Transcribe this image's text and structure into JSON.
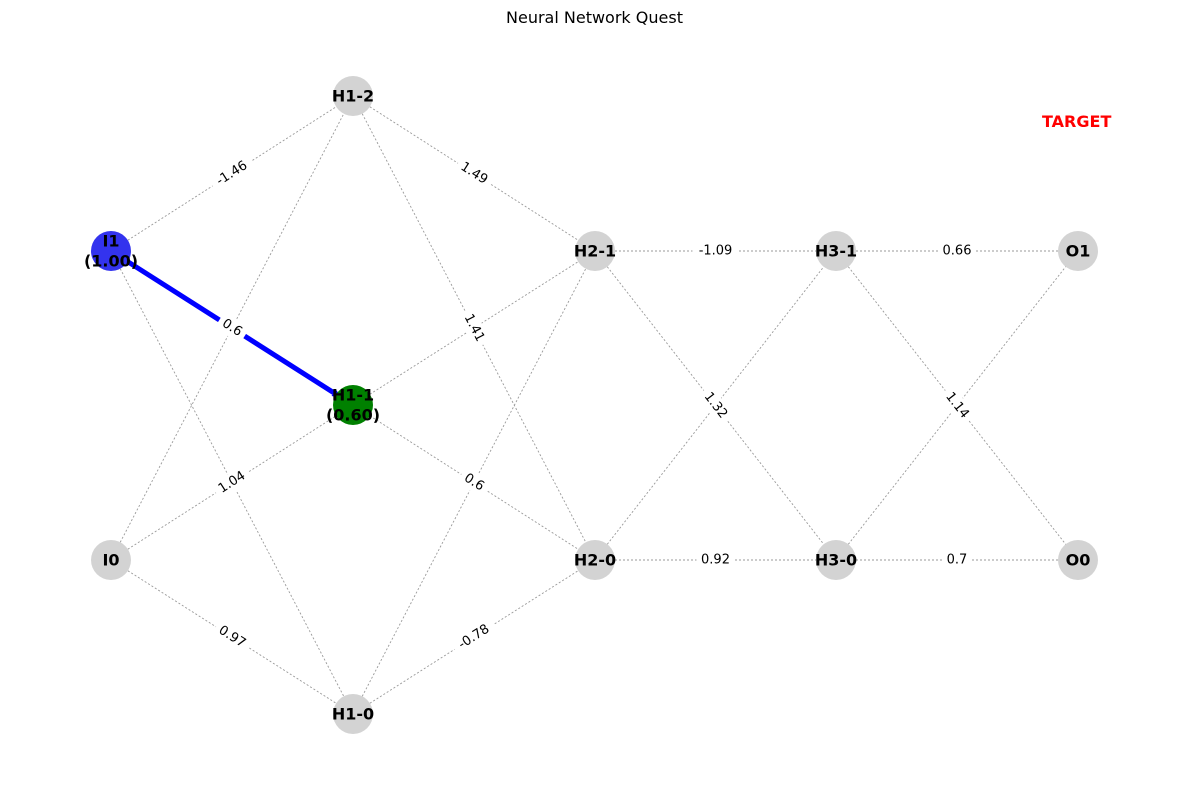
{
  "title": "Neural Network Quest",
  "target_label": "TARGET",
  "colors": {
    "node_default": "#d3d3d3",
    "node_current": "#3333ee",
    "node_next": "#008000",
    "edge": "#999999",
    "path": "#0000ff",
    "target_text": "#ff0000"
  },
  "nodes": [
    {
      "id": "I1",
      "label": "I1",
      "value": "(1.00)",
      "state": "current"
    },
    {
      "id": "I0",
      "label": "I0",
      "state": "default"
    },
    {
      "id": "H1-2",
      "label": "H1-2",
      "state": "default"
    },
    {
      "id": "H1-1",
      "label": "H1-1",
      "value": "(0.60)",
      "state": "next"
    },
    {
      "id": "H1-0",
      "label": "H1-0",
      "state": "default"
    },
    {
      "id": "H2-1",
      "label": "H2-1",
      "state": "default"
    },
    {
      "id": "H2-0",
      "label": "H2-0",
      "state": "default"
    },
    {
      "id": "H3-1",
      "label": "H3-1",
      "state": "default"
    },
    {
      "id": "H3-0",
      "label": "H3-0",
      "state": "default"
    },
    {
      "id": "O1",
      "label": "O1",
      "state": "default"
    },
    {
      "id": "O0",
      "label": "O0",
      "state": "default"
    }
  ],
  "edges": [
    {
      "from": "I1",
      "to": "H1-2",
      "weight": "-1.46"
    },
    {
      "from": "I1",
      "to": "H1-1",
      "weight": "0.6"
    },
    {
      "from": "I1",
      "to": "H1-0",
      "weight": ""
    },
    {
      "from": "I0",
      "to": "H1-2",
      "weight": ""
    },
    {
      "from": "I0",
      "to": "H1-1",
      "weight": "1.04"
    },
    {
      "from": "I0",
      "to": "H1-0",
      "weight": "0.97"
    },
    {
      "from": "H1-2",
      "to": "H2-1",
      "weight": "1.49"
    },
    {
      "from": "H1-2",
      "to": "H2-0",
      "weight": "1.41"
    },
    {
      "from": "H1-1",
      "to": "H2-1",
      "weight": ""
    },
    {
      "from": "H1-1",
      "to": "H2-0",
      "weight": "0.6"
    },
    {
      "from": "H1-0",
      "to": "H2-1",
      "weight": ""
    },
    {
      "from": "H1-0",
      "to": "H2-0",
      "weight": "-0.78"
    },
    {
      "from": "H2-1",
      "to": "H3-1",
      "weight": "-1.09"
    },
    {
      "from": "H2-1",
      "to": "H3-0",
      "weight": "1.32"
    },
    {
      "from": "H2-0",
      "to": "H3-1",
      "weight": ""
    },
    {
      "from": "H2-0",
      "to": "H3-0",
      "weight": "0.92"
    },
    {
      "from": "H3-1",
      "to": "O1",
      "weight": "0.66"
    },
    {
      "from": "H3-1",
      "to": "O0",
      "weight": "1.14"
    },
    {
      "from": "H3-0",
      "to": "O1",
      "weight": ""
    },
    {
      "from": "H3-0",
      "to": "O0",
      "weight": "0.7"
    }
  ],
  "path": [
    {
      "from": "I1",
      "to": "H1-1"
    }
  ]
}
